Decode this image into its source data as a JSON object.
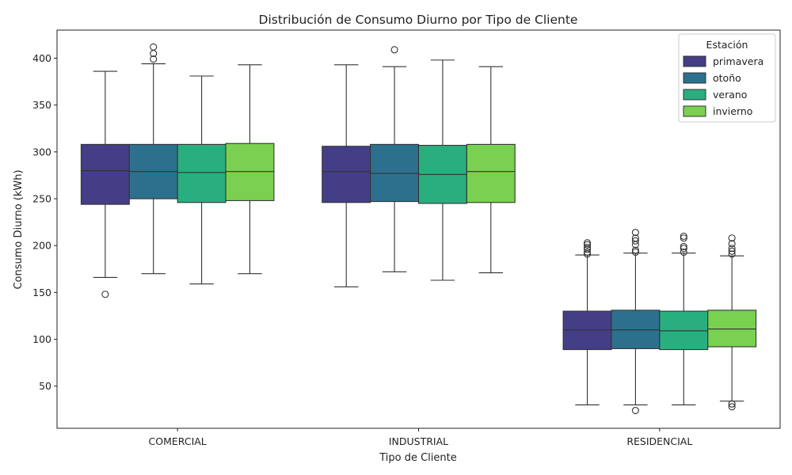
{
  "chart_data": {
    "type": "box",
    "title": "Distribución de Consumo Diurno por Tipo de Cliente",
    "xlabel": "Tipo de Cliente",
    "ylabel": "Consumo Diurno (kWh)",
    "ylim": [
      5,
      430
    ],
    "yticks": [
      50,
      100,
      150,
      200,
      250,
      300,
      350,
      400
    ],
    "categories": [
      "COMERCIAL",
      "INDUSTRIAL",
      "RESIDENCIAL"
    ],
    "legend": {
      "title": "Estación",
      "position": "top-right"
    },
    "series": [
      {
        "name": "primavera",
        "color": "#433e85",
        "boxes": [
          {
            "whisker_low": 166,
            "q1": 244,
            "median": 280,
            "q3": 308,
            "whisker_high": 386,
            "outliers": [
              148
            ]
          },
          {
            "whisker_low": 156,
            "q1": 246,
            "median": 279,
            "q3": 306,
            "whisker_high": 393,
            "outliers": []
          },
          {
            "whisker_low": 30,
            "q1": 89,
            "median": 110,
            "q3": 130,
            "whisker_high": 190,
            "outliers": [
              191,
              193,
              196,
              198,
              201,
              203
            ]
          }
        ]
      },
      {
        "name": "otoño",
        "color": "#2d708e",
        "boxes": [
          {
            "whisker_low": 170,
            "q1": 250,
            "median": 279,
            "q3": 308,
            "whisker_high": 394,
            "outliers": [
              399,
              405,
              412
            ]
          },
          {
            "whisker_low": 172,
            "q1": 247,
            "median": 277,
            "q3": 308,
            "whisker_high": 391,
            "outliers": [
              409
            ]
          },
          {
            "whisker_low": 30,
            "q1": 90,
            "median": 110,
            "q3": 131,
            "whisker_high": 192,
            "outliers": [
              24,
              193,
              195,
              201,
              205,
              208,
              214
            ]
          }
        ]
      },
      {
        "name": "verano",
        "color": "#29af7f",
        "boxes": [
          {
            "whisker_low": 159,
            "q1": 246,
            "median": 278,
            "q3": 308,
            "whisker_high": 381,
            "outliers": []
          },
          {
            "whisker_low": 163,
            "q1": 245,
            "median": 276,
            "q3": 307,
            "whisker_high": 398,
            "outliers": []
          },
          {
            "whisker_low": 30,
            "q1": 89,
            "median": 109,
            "q3": 130,
            "whisker_high": 192,
            "outliers": [
              193,
              197,
              199,
              208,
              210
            ]
          }
        ]
      },
      {
        "name": "invierno",
        "color": "#7ad151",
        "boxes": [
          {
            "whisker_low": 170,
            "q1": 248,
            "median": 279,
            "q3": 309,
            "whisker_high": 393,
            "outliers": []
          },
          {
            "whisker_low": 171,
            "q1": 246,
            "median": 279,
            "q3": 308,
            "whisker_high": 391,
            "outliers": []
          },
          {
            "whisker_low": 34,
            "q1": 92,
            "median": 111,
            "q3": 131,
            "whisker_high": 189,
            "outliers": [
              28,
              31,
              191,
              194,
              197,
              202,
              208
            ]
          }
        ]
      }
    ]
  }
}
